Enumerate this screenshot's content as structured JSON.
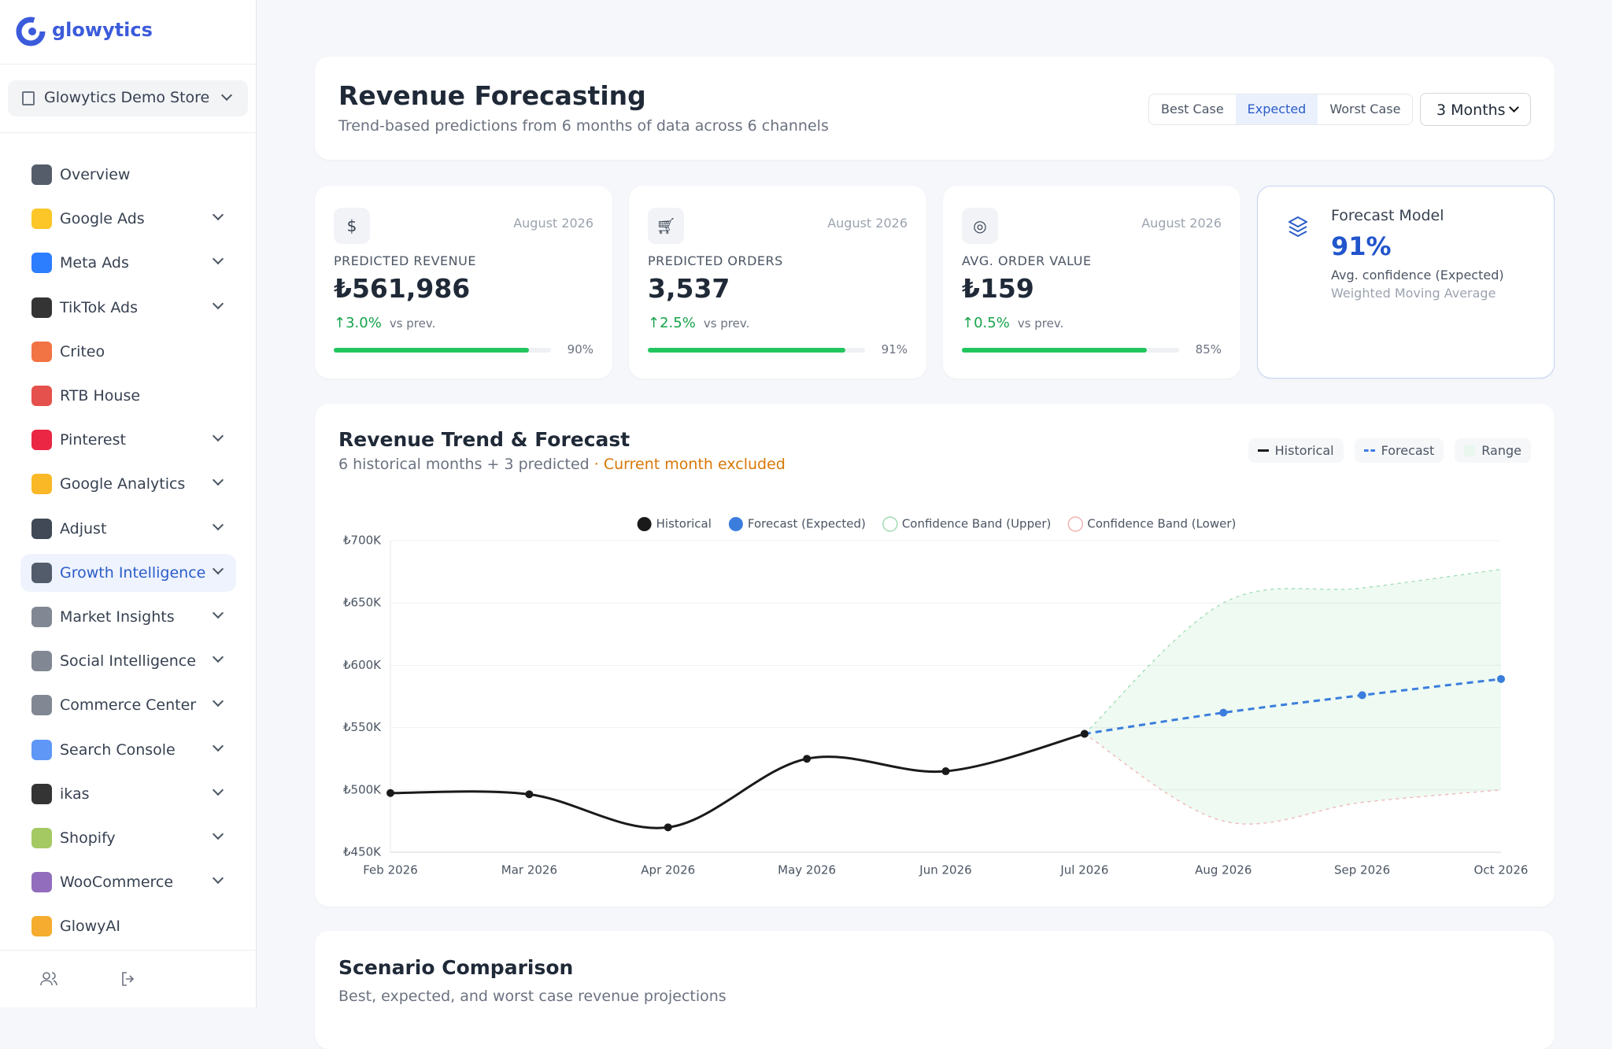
{
  "sidebar": {
    "brand": "glowytics",
    "store": "Glowytics Demo Store",
    "nav": [
      {
        "label": "Overview",
        "icon": "#374151",
        "expandable": false
      },
      {
        "label": "Google Ads",
        "icon": "#fbbc04",
        "expandable": true
      },
      {
        "label": "Meta Ads",
        "icon": "#0866ff",
        "expandable": true
      },
      {
        "label": "TikTok Ads",
        "icon": "#111111",
        "expandable": true
      },
      {
        "label": "Criteo",
        "icon": "#f05a22",
        "expandable": false
      },
      {
        "label": "RTB House",
        "icon": "#e0322d",
        "expandable": false
      },
      {
        "label": "Pinterest",
        "icon": "#e60023",
        "expandable": true
      },
      {
        "label": "Google Analytics",
        "icon": "#f9ab00",
        "expandable": true
      },
      {
        "label": "Adjust",
        "icon": "#1f2937",
        "expandable": true
      },
      {
        "label": "Growth Intelligence",
        "icon": "#374151",
        "expandable": true,
        "active": true
      },
      {
        "label": "Market Insights",
        "icon": "#6b7280",
        "expandable": true
      },
      {
        "label": "Social Intelligence",
        "icon": "#6b7280",
        "expandable": true
      },
      {
        "label": "Commerce Center",
        "icon": "#6b7280",
        "expandable": true
      },
      {
        "label": "Search Console",
        "icon": "#4285f4",
        "expandable": true
      },
      {
        "label": "ikas",
        "icon": "#111111",
        "expandable": true
      },
      {
        "label": "Shopify",
        "icon": "#95bf47",
        "expandable": true
      },
      {
        "label": "WooCommerce",
        "icon": "#7f54b3",
        "expandable": true
      },
      {
        "label": "GlowyAI",
        "icon": "#f59e0b",
        "expandable": false
      }
    ]
  },
  "header": {
    "title": "Revenue Forecasting",
    "subtitle": "Trend-based predictions from 6 months of data across 6 channels",
    "scenarios": [
      {
        "label": "Best Case",
        "selected": false
      },
      {
        "label": "Expected",
        "selected": true
      },
      {
        "label": "Worst Case",
        "selected": false
      }
    ],
    "period": "3 Months"
  },
  "kpis": [
    {
      "icon": "$",
      "period": "August 2026",
      "label": "PREDICTED REVENUE",
      "value": "₺561,986",
      "change": "3.0%",
      "change_note": "vs prev.",
      "progress": 90,
      "progress_label": "90%"
    },
    {
      "icon": "cart",
      "period": "August 2026",
      "label": "PREDICTED ORDERS",
      "value": "3,537",
      "change": "2.5%",
      "change_note": "vs prev.",
      "progress": 91,
      "progress_label": "91%"
    },
    {
      "icon": "target",
      "period": "August 2026",
      "label": "AVG. ORDER VALUE",
      "value": "₺159",
      "change": "0.5%",
      "change_note": "vs prev.",
      "progress": 85,
      "progress_label": "85%"
    }
  ],
  "model": {
    "title": "Forecast Model",
    "confidence": "91%",
    "confidence_note": "Avg. confidence (Expected)",
    "method": "Weighted Moving Average"
  },
  "trend": {
    "title": "Revenue Trend & Forecast",
    "subtitle": "6 historical months + 3 predicted",
    "note": "· Current month excluded",
    "pills": [
      "Historical",
      "Forecast",
      "Range"
    ]
  },
  "chart_data": {
    "type": "line",
    "categories": [
      "Feb 2026",
      "Mar 2026",
      "Apr 2026",
      "May 2026",
      "Jun 2026",
      "Jul 2026",
      "Aug 2026",
      "Sep 2026",
      "Oct 2026"
    ],
    "series": [
      {
        "name": "Historical",
        "color": "#1a1a1a",
        "values": [
          497500,
          496500,
          470000,
          525000,
          515000,
          545000,
          null,
          null,
          null
        ]
      },
      {
        "name": "Forecast (Expected)",
        "color": "#3b7ddd",
        "values": [
          null,
          null,
          null,
          null,
          null,
          545000,
          561986,
          576000,
          589000
        ]
      },
      {
        "name": "Confidence Band (Upper)",
        "color": "#9fdcb2",
        "values": [
          null,
          null,
          null,
          null,
          null,
          545000,
          650000,
          662000,
          677000
        ]
      },
      {
        "name": "Confidence Band (Lower)",
        "color": "#f0b3b3",
        "values": [
          null,
          null,
          null,
          null,
          null,
          545000,
          475000,
          490000,
          500000
        ]
      }
    ],
    "band_color": "#22c55e",
    "ylim": [
      450000,
      700000
    ],
    "yticks": [
      {
        "value": 450000,
        "label": "₺450K"
      },
      {
        "value": 500000,
        "label": "₺500K"
      },
      {
        "value": 550000,
        "label": "₺550K"
      },
      {
        "value": 600000,
        "label": "₺600K"
      },
      {
        "value": 650000,
        "label": "₺650K"
      },
      {
        "value": 700000,
        "label": "₺700K"
      }
    ],
    "grid": true
  },
  "scenario": {
    "title": "Scenario Comparison",
    "subtitle": "Best, expected, and worst case revenue projections"
  }
}
